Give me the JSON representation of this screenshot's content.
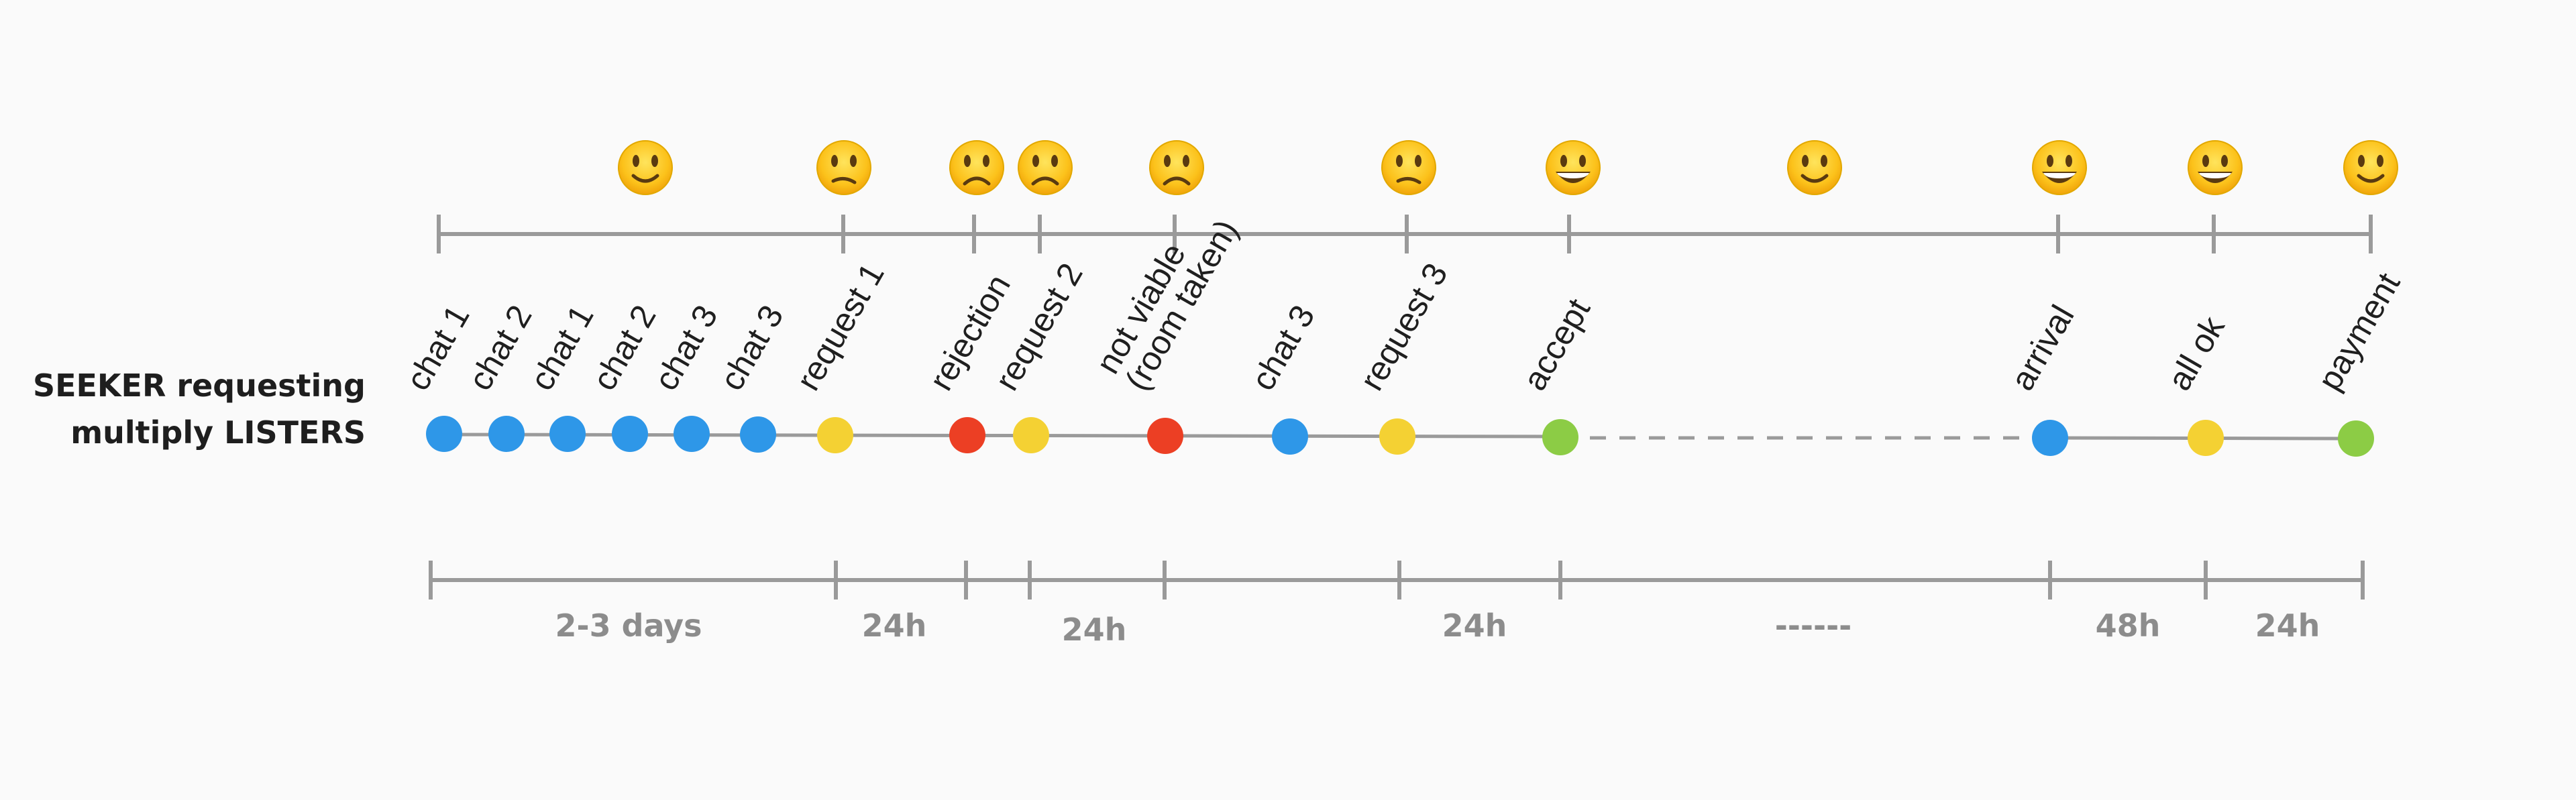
{
  "title": {
    "line1": "SEEKER requesting",
    "line2": "multiply LISTERS"
  },
  "colors": {
    "blue": "#2e97e8",
    "yellow": "#f4d133",
    "red": "#ec3f24",
    "green": "#8ccc45",
    "axis": "#9a9a9a",
    "duration_text": "#8c8c8c"
  },
  "events": [
    {
      "label": "chat 1",
      "status": "blue"
    },
    {
      "label": "chat 2",
      "status": "blue"
    },
    {
      "label": "chat 1",
      "status": "blue"
    },
    {
      "label": "chat 2",
      "status": "blue"
    },
    {
      "label": "chat 3",
      "status": "blue"
    },
    {
      "label": "chat 3",
      "status": "blue"
    },
    {
      "label": "request 1",
      "status": "yellow"
    },
    {
      "label": "rejection",
      "status": "red"
    },
    {
      "label": "request 2",
      "status": "yellow"
    },
    {
      "label": "not viable\n(room taken)",
      "status": "red"
    },
    {
      "label": "chat 3",
      "status": "blue"
    },
    {
      "label": "request 3",
      "status": "yellow"
    },
    {
      "label": "accept",
      "status": "green"
    },
    {
      "label": "arrival",
      "status": "blue"
    },
    {
      "label": "all ok",
      "status": "yellow"
    },
    {
      "label": "payment",
      "status": "green"
    }
  ],
  "moods": [
    {
      "mood": "slightly-smiling-face-icon"
    },
    {
      "mood": "confused-face-icon"
    },
    {
      "mood": "slightly-frowning-face-icon"
    },
    {
      "mood": "slightly-frowning-face-icon"
    },
    {
      "mood": "slightly-frowning-face-icon"
    },
    {
      "mood": "confused-face-icon"
    },
    {
      "mood": "grinning-face-icon"
    },
    {
      "mood": "slightly-smiling-face-icon"
    },
    {
      "mood": "grinning-face-icon"
    },
    {
      "mood": "grinning-face-icon"
    },
    {
      "mood": "slightly-smiling-face-icon"
    }
  ],
  "durations": [
    {
      "label": "2-3 days"
    },
    {
      "label": "24h"
    },
    {
      "label": "24h"
    },
    {
      "label": "24h"
    },
    {
      "label": "------"
    },
    {
      "label": "48h"
    },
    {
      "label": "24h"
    }
  ]
}
